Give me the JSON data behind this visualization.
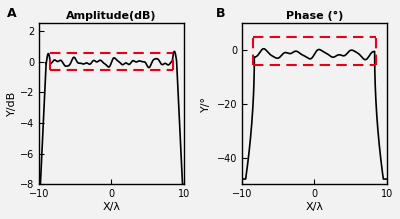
{
  "title_A": "Amplitude(dB)",
  "title_B": "Phase (°)",
  "xlabel": "X/λ",
  "ylabel_A": "Y/dB",
  "ylabel_B": "Y/°",
  "label_A": "A",
  "label_B": "B",
  "xlim": [
    -10,
    10
  ],
  "ylim_A": [
    -8,
    2.5
  ],
  "ylim_B": [
    -50,
    10
  ],
  "yticks_A": [
    2,
    0,
    -2,
    -4,
    -6,
    -8
  ],
  "yticks_B": [
    0,
    -20,
    -40
  ],
  "xticks": [
    -10,
    0,
    10
  ],
  "dash_A_upper": 0.55,
  "dash_A_lower": -0.55,
  "dash_A_xleft": -8.5,
  "dash_A_xright": 8.5,
  "dash_B_upper": 5.0,
  "dash_B_lower": -5.5,
  "dash_B_xleft": -8.5,
  "dash_B_xright": 8.5,
  "edge_x": 9.0,
  "phase_bottom": -48,
  "line_color": "#000000",
  "dash_color": "#e8001a",
  "bg_color": "#f2f2f2"
}
